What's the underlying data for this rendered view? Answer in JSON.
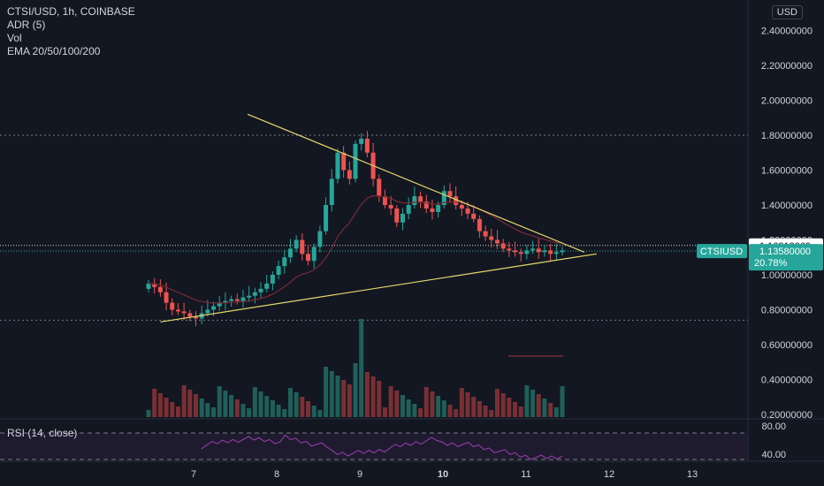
{
  "header": {
    "symbol_line": "CTSI/USD, 1h, COINBASE",
    "indicators": [
      "ADR (5)",
      "Vol",
      "EMA 20/50/100/200"
    ]
  },
  "price_axis": {
    "currency_button": "USD",
    "ticks": [
      "2.40000000",
      "2.20000000",
      "2.00000000",
      "1.80000000",
      "1.60000000",
      "1.40000000",
      "1.20000000",
      "1.00000000",
      "0.80000000",
      "0.60000000",
      "0.40000000",
      "0.20000000"
    ]
  },
  "rsi_axis": {
    "label": "RSI (14, close)",
    "ticks": [
      "80.00",
      "40.00"
    ]
  },
  "time_axis": {
    "ticks": [
      "7",
      "8",
      "9",
      "10",
      "11",
      "12",
      "13"
    ]
  },
  "badges": {
    "line_price": "1.16813069",
    "symbol": "CTSIUSD",
    "last_price": "1.13580000",
    "change_pct": "20.78%"
  },
  "colors": {
    "background": "#131722",
    "up": "#26a69a",
    "down": "#ef5350",
    "trendline": "#e6d86a",
    "ema": "#7a2a35",
    "rsi": "#9b3fb0",
    "badge_green": "#26a69a"
  },
  "chart_data": {
    "type": "candlestick",
    "title": "CTSI/USD, 1h, COINBASE",
    "ylim": [
      0.16,
      2.52
    ],
    "x_range_days": [
      6.0,
      13.7
    ],
    "price_candles_close": [
      0.95,
      0.93,
      0.9,
      0.84,
      0.8,
      0.79,
      0.78,
      0.76,
      0.75,
      0.78,
      0.8,
      0.82,
      0.84,
      0.85,
      0.86,
      0.85,
      0.87,
      0.88,
      0.9,
      0.92,
      0.95,
      1.0,
      1.05,
      1.1,
      1.15,
      1.2,
      1.12,
      1.08,
      1.16,
      1.25,
      1.4,
      1.55,
      1.7,
      1.6,
      1.55,
      1.75,
      1.78,
      1.7,
      1.55,
      1.45,
      1.4,
      1.38,
      1.3,
      1.35,
      1.4,
      1.45,
      1.42,
      1.38,
      1.36,
      1.4,
      1.48,
      1.45,
      1.4,
      1.38,
      1.35,
      1.32,
      1.25,
      1.22,
      1.2,
      1.18,
      1.15,
      1.14,
      1.13,
      1.12,
      1.14,
      1.15,
      1.13,
      1.14,
      1.12,
      1.13,
      1.14
    ],
    "trendlines": [
      {
        "from": [
          7.65,
          1.92
        ],
        "to": [
          11.7,
          1.13
        ]
      },
      {
        "from": [
          6.6,
          0.73
        ],
        "to": [
          11.85,
          1.12
        ]
      }
    ],
    "horizontal_levels": [
      1.8,
      0.74,
      1.16813069,
      1.1358
    ],
    "rsi_ticks": [
      80,
      40
    ]
  }
}
